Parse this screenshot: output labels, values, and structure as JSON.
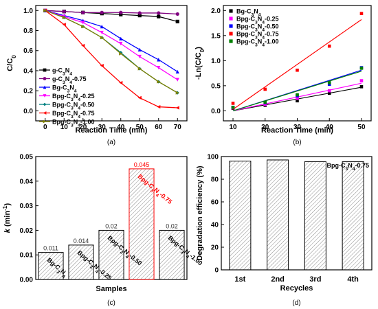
{
  "chart_data": [
    {
      "panel": "(a)",
      "type": "line",
      "xlabel": "Reaction Time (min)",
      "ylabel": "C/C0",
      "xlim": [
        -5,
        75
      ],
      "ylim": [
        -0.1,
        1.05
      ],
      "xticks": [
        0,
        10,
        20,
        30,
        40,
        50,
        60,
        70
      ],
      "yticks": [
        0.0,
        0.2,
        0.4,
        0.6,
        0.8,
        1.0
      ],
      "legend_position": "bottom-left",
      "series": [
        {
          "name": "g-C3N4",
          "color": "#000000",
          "marker": "square",
          "x": [
            0,
            10,
            20,
            30,
            40,
            50,
            60,
            70
          ],
          "values": [
            1.0,
            0.99,
            0.98,
            0.97,
            0.96,
            0.95,
            0.94,
            0.89
          ]
        },
        {
          "name": "g-C3N4-0.75",
          "color": "#800080",
          "marker": "circle",
          "x": [
            0,
            10,
            20,
            30,
            40,
            50,
            60,
            70
          ],
          "values": [
            1.0,
            0.99,
            0.98,
            0.98,
            0.98,
            0.975,
            0.975,
            0.965
          ]
        },
        {
          "name": "Bg-C3N4",
          "color": "#0000ff",
          "marker": "triangle",
          "x": [
            0,
            10,
            20,
            30,
            40,
            50,
            60,
            70
          ],
          "values": [
            1.0,
            0.95,
            0.9,
            0.84,
            0.72,
            0.61,
            0.51,
            0.39
          ]
        },
        {
          "name": "Bpg-C3N4-0.25",
          "color": "#ff00ff",
          "marker": "triangle-down",
          "x": [
            0,
            10,
            20,
            30,
            40,
            50,
            60,
            70
          ],
          "values": [
            1.0,
            0.94,
            0.88,
            0.78,
            0.67,
            0.54,
            0.43,
            0.31
          ]
        },
        {
          "name": "Bpg-C3N4-0.50",
          "color": "#008080",
          "marker": "diamond",
          "x": [
            0,
            10,
            20,
            30,
            40,
            50,
            60,
            70
          ],
          "values": [
            1.0,
            0.93,
            0.84,
            0.73,
            0.58,
            0.42,
            0.29,
            0.18
          ]
        },
        {
          "name": "Bpg-C3N4-0.75",
          "color": "#ff0000",
          "marker": "triangle-left",
          "x": [
            0,
            10,
            20,
            30,
            40,
            50,
            60,
            70
          ],
          "values": [
            1.0,
            0.86,
            0.65,
            0.45,
            0.28,
            0.13,
            0.04,
            0.03
          ]
        },
        {
          "name": "Bpg-C3N4-1.00",
          "color": "#808000",
          "marker": "triangle-right",
          "x": [
            0,
            10,
            20,
            30,
            40,
            50,
            60,
            70
          ],
          "values": [
            1.0,
            0.93,
            0.84,
            0.73,
            0.57,
            0.42,
            0.29,
            0.18
          ]
        }
      ],
      "legend_labels": [
        {
          "main": "g-C",
          "sub1": "3",
          "mid": "N",
          "sub2": "4",
          "tail": ""
        },
        {
          "main": "g-C",
          "sub1": "3",
          "mid": "N",
          "sub2": "4",
          "tail": "-0.75"
        },
        {
          "main": "Bg-C",
          "sub1": "3",
          "mid": "N",
          "sub2": "4",
          "tail": ""
        },
        {
          "main": "Bpg-C",
          "sub1": "3",
          "mid": "N",
          "sub2": "4",
          "tail": "-0.25"
        },
        {
          "main": "Bpg-C",
          "sub1": "3",
          "mid": "N",
          "sub2": "4",
          "tail": "-0.50"
        },
        {
          "main": "Bpg-C",
          "sub1": "3",
          "mid": "N",
          "sub2": "4",
          "tail": "-0.75"
        },
        {
          "main": "Bpg-C",
          "sub1": "3",
          "mid": "N",
          "sub2": "4",
          "tail": "-1.00"
        }
      ]
    },
    {
      "panel": "(b)",
      "type": "scatter",
      "xlabel": "Reaction Time (min)",
      "ylabel": "-Ln(C/C0)",
      "xlim": [
        7,
        53
      ],
      "ylim": [
        -0.2,
        2.1
      ],
      "xticks": [
        10,
        20,
        30,
        40,
        50
      ],
      "yticks": [
        0.0,
        0.5,
        1.0,
        1.5,
        2.0
      ],
      "legend_position": "top-left",
      "fit_lines": true,
      "series": [
        {
          "name": "Bg-C3N4",
          "color": "#000000",
          "x": [
            10,
            20,
            30,
            40,
            50
          ],
          "values": [
            0.05,
            0.11,
            0.2,
            0.35,
            0.48
          ],
          "fit": [
            0.0,
            0.47
          ]
        },
        {
          "name": "Bpg-C3N4-0.25",
          "color": "#ff00ff",
          "x": [
            10,
            20,
            30,
            40,
            50
          ],
          "values": [
            0.06,
            0.13,
            0.25,
            0.4,
            0.6
          ],
          "fit": [
            0.0,
            0.55
          ]
        },
        {
          "name": "Bpg-C3N4-0.50",
          "color": "#0000ff",
          "x": [
            10,
            20,
            30,
            40,
            50
          ],
          "values": [
            0.07,
            0.16,
            0.3,
            0.53,
            0.86
          ],
          "fit": [
            0.0,
            0.81
          ]
        },
        {
          "name": "Bpg-C3N4-0.75",
          "color": "#ff0000",
          "x": [
            10,
            20,
            30,
            40,
            50
          ],
          "values": [
            0.15,
            0.43,
            0.81,
            1.29,
            1.94
          ],
          "fit": [
            0.03,
            1.82
          ]
        },
        {
          "name": "Bpg-C3N4-1.00",
          "color": "#008000",
          "x": [
            10,
            20,
            30,
            40,
            50
          ],
          "values": [
            0.07,
            0.17,
            0.32,
            0.56,
            0.85
          ],
          "fit": [
            0.0,
            0.79
          ]
        }
      ],
      "legend_labels": [
        {
          "main": "Bg-C",
          "sub1": "3",
          "mid": "N",
          "sub2": "4",
          "tail": ""
        },
        {
          "main": "Bpg-C",
          "sub1": "3",
          "mid": "N",
          "sub2": "4",
          "tail": "-0.25"
        },
        {
          "main": "Bpg-C",
          "sub1": "3",
          "mid": "N",
          "sub2": "4",
          "tail": "-0.50"
        },
        {
          "main": "Bpg-C",
          "sub1": "3",
          "mid": "N",
          "sub2": "4",
          "tail": "-0.75"
        },
        {
          "main": "Bpg-C",
          "sub1": "3",
          "mid": "N",
          "sub2": "4",
          "tail": "-1.00"
        }
      ]
    },
    {
      "panel": "(c)",
      "type": "bar",
      "xlabel": "Samples",
      "ylabel": "k (min-1)",
      "ylim": [
        0,
        0.05
      ],
      "yticks": [
        0.0,
        0.01,
        0.02,
        0.03,
        0.04,
        0.05
      ],
      "categories": [
        "Bg-C3N4",
        "Bpg-C3N4-0.25",
        "Bpg-C3N4-0.50",
        "Bpg-C3N4-0.75",
        "Bpg-C3N4-1.00"
      ],
      "values": [
        0.011,
        0.014,
        0.02,
        0.045,
        0.02
      ],
      "data_labels": [
        "0.011",
        "0.014",
        "0.02",
        "0.045",
        "0.02"
      ],
      "highlight_index": 3,
      "highlight_color": "#ff0000",
      "category_labels": [
        {
          "main": "Bg-C",
          "sub1": "3",
          "mid": "N",
          "sub2": "4",
          "tail": ""
        },
        {
          "main": "Bpg-C",
          "sub1": "3",
          "mid": "N",
          "sub2": "4",
          "tail": "-0.25"
        },
        {
          "main": "Bpg-C",
          "sub1": "3",
          "mid": "N",
          "sub2": "4",
          "tail": "-0.50"
        },
        {
          "main": "Bpg-C",
          "sub1": "3",
          "mid": "N",
          "sub2": "4",
          "tail": "-0.75"
        },
        {
          "main": "Bpg-C",
          "sub1": "3",
          "mid": "N",
          "sub2": "4",
          "tail": "-1.00"
        }
      ]
    },
    {
      "panel": "(d)",
      "type": "bar",
      "xlabel": "Recycles",
      "ylabel": "Degradation efficiency (%)",
      "ylim": [
        0,
        100
      ],
      "yticks": [
        0,
        20,
        40,
        60,
        80,
        100
      ],
      "categories": [
        "1st",
        "2nd",
        "3rd",
        "4th"
      ],
      "values": [
        96,
        97,
        95.5,
        95.5
      ],
      "annotation": {
        "main": "Bpg-C",
        "sub1": "3",
        "mid": "N",
        "sub2": "4",
        "tail": "-0.75"
      }
    }
  ],
  "panel_labels": [
    "(a)",
    "(b)",
    "(c)",
    "(d)"
  ]
}
